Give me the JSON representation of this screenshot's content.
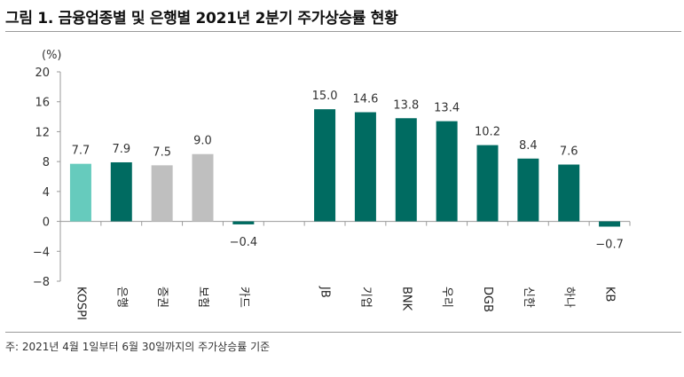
{
  "title": "그림 1. 금융업종별 및 은행별 2021년 2분기 주가상승률 현황",
  "footnote": "주: 2021년 4월 1일부터 6월 30일까지의 주가상승률 기준",
  "colors": {
    "mint": "#66cbbd",
    "teal": "#006b61",
    "gray": "#bfbfbf",
    "axis": "#9a9a9a"
  },
  "chart_data": {
    "type": "bar",
    "unit": "(%)",
    "ylim": [
      -8,
      20
    ],
    "yticks": [
      "20",
      "16",
      "12",
      "8",
      "4",
      "0",
      "−4",
      "−8"
    ],
    "ytick_values": [
      20,
      16,
      12,
      8,
      4,
      0,
      -4,
      -8
    ],
    "categories": [
      "KOSPI",
      "은행",
      "증권",
      "보험",
      "카드",
      "",
      "JB",
      "기업",
      "BNK",
      "우리",
      "DGB",
      "신한",
      "하나",
      "KB"
    ],
    "values": [
      7.7,
      7.9,
      7.5,
      9.0,
      -0.4,
      null,
      15.0,
      14.6,
      13.8,
      13.4,
      10.2,
      8.4,
      7.6,
      -0.7
    ],
    "labels": [
      "7.7",
      "7.9",
      "7.5",
      "9.0",
      "−0.4",
      "",
      "15.0",
      "14.6",
      "13.8",
      "13.4",
      "10.2",
      "8.4",
      "7.6",
      "−0.7"
    ],
    "bar_colors": [
      "mint",
      "teal",
      "gray",
      "gray",
      "teal",
      "",
      "teal",
      "teal",
      "teal",
      "teal",
      "teal",
      "teal",
      "teal",
      "teal"
    ]
  }
}
